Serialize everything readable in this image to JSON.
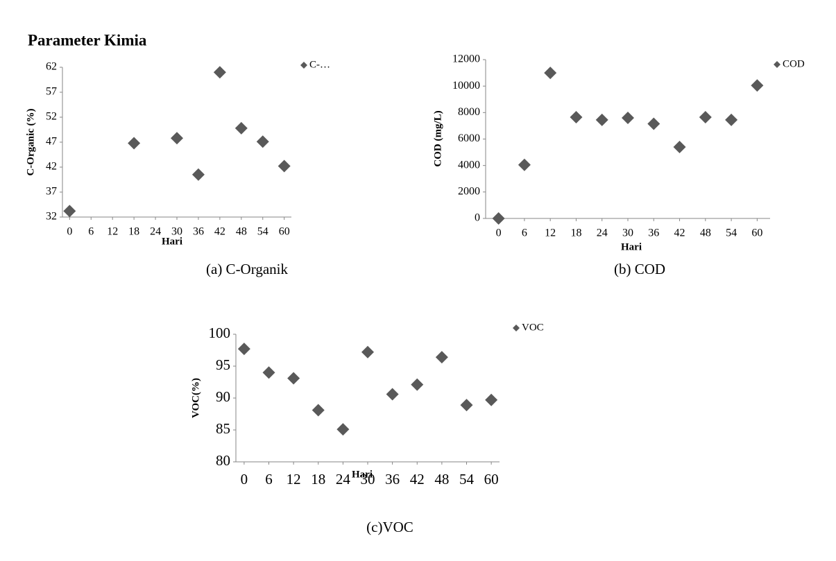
{
  "heading": "Parameter Kimia",
  "chart_data": [
    {
      "type": "scatter",
      "title": "(a)  C-Organik",
      "xlabel": "Hari",
      "ylabel": "C-Organic (%)",
      "x": [
        0,
        18,
        30,
        36,
        42,
        48,
        54,
        60
      ],
      "series": [
        {
          "name": "C-…",
          "color": "#595959",
          "values": [
            33.2,
            46.8,
            47.8,
            40.5,
            61,
            49.8,
            47.1,
            42.2
          ]
        }
      ],
      "xlim": [
        -2,
        62
      ],
      "xticks": [
        0,
        6,
        12,
        18,
        24,
        30,
        36,
        42,
        48,
        54,
        60
      ],
      "ylim": [
        32,
        62
      ],
      "yticks": [
        32,
        37,
        42,
        47,
        52,
        57,
        62
      ],
      "grid": false
    },
    {
      "type": "scatter",
      "title": "(b) COD",
      "xlabel": "Hari",
      "ylabel": "COD (mg/L)",
      "x": [
        0,
        6,
        12,
        18,
        24,
        30,
        36,
        42,
        48,
        54,
        60
      ],
      "series": [
        {
          "name": "COD",
          "color": "#595959",
          "values": [
            0,
            4050,
            11000,
            7650,
            7450,
            7600,
            7150,
            5400,
            7650,
            7450,
            10050
          ]
        }
      ],
      "xlim": [
        -3,
        63
      ],
      "xticks": [
        0,
        6,
        12,
        18,
        24,
        30,
        36,
        42,
        48,
        54,
        60
      ],
      "ylim": [
        0,
        12000
      ],
      "yticks": [
        0,
        2000,
        4000,
        6000,
        8000,
        10000,
        12000
      ],
      "grid": false
    },
    {
      "type": "scatter",
      "title": "(c)VOC",
      "xlabel": "Hari",
      "ylabel": "VOC(%)",
      "x": [
        0,
        6,
        12,
        18,
        24,
        30,
        36,
        42,
        48,
        54,
        60
      ],
      "series": [
        {
          "name": "VOC",
          "color": "#595959",
          "values": [
            97.7,
            94,
            93.1,
            88.1,
            85.1,
            97.2,
            90.6,
            92.1,
            96.4,
            88.9,
            89.7
          ]
        }
      ],
      "xlim": [
        -2,
        62
      ],
      "xticks": [
        0,
        6,
        12,
        18,
        24,
        30,
        36,
        42,
        48,
        54,
        60
      ],
      "ylim": [
        80,
        100
      ],
      "yticks": [
        80,
        85,
        90,
        95,
        100
      ],
      "grid": false
    }
  ]
}
